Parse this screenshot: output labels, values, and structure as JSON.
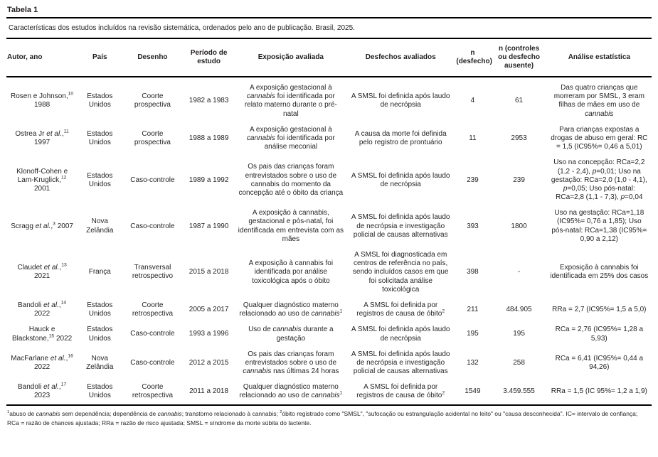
{
  "page": {
    "table_label": "Tabela 1",
    "caption": "Características dos estudos incluídos na revisão sistemática, ordenados pelo ano de publicação. Brasil, 2025."
  },
  "table": {
    "columns": [
      {
        "key": "autor",
        "label": "Autor, ano"
      },
      {
        "key": "pais",
        "label": "País"
      },
      {
        "key": "desenho",
        "label": "Desenho"
      },
      {
        "key": "periodo",
        "label": "Período de estudo"
      },
      {
        "key": "exposicao",
        "label": "Exposição avaliada"
      },
      {
        "key": "desfechos",
        "label": "Desfechos avaliados"
      },
      {
        "key": "n_desfecho",
        "label": "n (desfecho)"
      },
      {
        "key": "n_controles",
        "label": "n (controles ou desfecho ausente)"
      },
      {
        "key": "analise",
        "label": "Análise estatística"
      }
    ],
    "rows": [
      {
        "autor": "Rosen e Johnson,^10^ 1988",
        "pais": "Estados Unidos",
        "desenho": "Coorte prospectiva",
        "periodo": "1982 a 1983",
        "exposicao": "A exposição gestacional à *cannabis* foi identificada por relato materno durante o pré-natal",
        "desfechos": "A SMSL foi definida após laudo de necrópsia",
        "n_desfecho": "4",
        "n_controles": "61",
        "analise": "Das quatro crianças que morreram por SMSL, 3 eram filhas de mães em uso de *cannabis*"
      },
      {
        "autor": "Ostrea Jr *et al.*,^11^ 1997",
        "pais": "Estados Unidos",
        "desenho": "Coorte prospectiva",
        "periodo": "1988 a 1989",
        "exposicao": "A exposição gestacional à *cannabis* foi identificada por análise meconial",
        "desfechos": "A causa da morte foi definida pelo registro de prontuário",
        "n_desfecho": "11",
        "n_controles": "2953",
        "analise": "Para crianças expostas a drogas de abuso em geral: RC = 1,5 (IC95%= 0,46 a 5,01)"
      },
      {
        "autor": "Klonoff-Cohen e Lam-Kruglick,^12^ 2001",
        "pais": "Estados Unidos",
        "desenho": "Caso-controle",
        "periodo": "1989 a 1992",
        "exposicao": "Os pais das crianças foram entrevistados sobre o uso de cannabis do momento da concepção até o óbito da criança",
        "desfechos": "A SMSL foi definida após laudo de necrópsia",
        "n_desfecho": "239",
        "n_controles": "239",
        "analise": "Uso na concepção: RCa=2,2 (1,2 - 2,4), *p*=0,01; Uso na gestação: RCa=2,0 (1,0 - 4,1), *p*=0,05; Uso pós-natal: RCa=2,8 (1,1 - 7,3), *p*=0,04"
      },
      {
        "autor": "Scragg *et al.*,^3^ 2007",
        "pais": "Nova Zelândia",
        "desenho": "Caso-controle",
        "periodo": "1987 a 1990",
        "exposicao": "A exposição à cannabis, gestacional e pós-natal, foi identificada em entrevista com as mães",
        "desfechos": "A SMSL foi definida após laudo de necrópsia e investigação policial de causas alternativas",
        "n_desfecho": "393",
        "n_controles": "1800",
        "analise": "Uso na gestação: RCa=1,18 (IC95%= 0,76 a 1,85); Uso pós-natal: RCa=1,38 (IC95%= 0,90 a 2,12)"
      },
      {
        "autor": "Claudet *et al.*,^13^ 2021",
        "pais": "França",
        "desenho": "Transversal retrospectivo",
        "periodo": "2015 a 2018",
        "exposicao": "A exposição à cannabis foi identificada por análise toxicológica após o óbito",
        "desfechos": "A SMSL foi diagnosticada em centros de referência no país, sendo incluídos casos em que foi solicitada análise toxicológica",
        "n_desfecho": "398",
        "n_controles": "-",
        "analise": "Exposição à cannabis foi identificada em 25% dos casos"
      },
      {
        "autor": "Bandoli *et al.*,^14^ 2022",
        "pais": "Estados Unidos",
        "desenho": "Coorte retrospectiva",
        "periodo": "2005 a 2017",
        "exposicao": "Qualquer diagnóstico materno relacionado ao uso de *cannabis*^1^",
        "desfechos": "A SMSL foi definida por registros de causa de óbito^2^",
        "n_desfecho": "211",
        "n_controles": "484.905",
        "analise": "RRa = 2,7 (IC95%= 1,5 a 5,0)"
      },
      {
        "autor": "Hauck e Blackstone,^15^ 2022",
        "pais": "Estados Unidos",
        "desenho": "Caso-controle",
        "periodo": "1993 a 1996",
        "exposicao": "Uso de *cannabis* durante a gestação",
        "desfechos": "A SMSL foi definida após laudo de necrópsia",
        "n_desfecho": "195",
        "n_controles": "195",
        "analise": "RCa = 2,76 (IC95%= 1,28 a 5,93)"
      },
      {
        "autor": "MacFarlane *et al.*,^16^ 2022",
        "pais": "Nova Zelândia",
        "desenho": "Caso-controle",
        "periodo": "2012 a 2015",
        "exposicao": "Os pais das crianças foram entrevistados sobre o uso de *cannabis* nas últimas 24 horas",
        "desfechos": "A SMSL foi definida após laudo de necrópsia e investigação policial de causas alternativas",
        "n_desfecho": "132",
        "n_controles": "258",
        "analise": "RCa = 6,41 (IC95%= 0,44 a 94,26)"
      },
      {
        "autor": "Bandoli *et al.*,^17^ 2023",
        "pais": "Estados Unidos",
        "desenho": "Coorte retrospectiva",
        "periodo": "2011 a 2018",
        "exposicao": "Qualquer diagnóstico materno relacionado ao uso de *cannabis*^1^",
        "desfechos": "A SMSL foi definida por registros de causa de óbito^2^",
        "n_desfecho": "1549",
        "n_controles": "3.459.555",
        "analise": "RRa = 1,5 (IC 95%= 1,2 a 1,9)"
      }
    ]
  },
  "footnote": "^1^abuso de *cannabis* sem dependência; dependência de *cannabis*; transtorno relacionado à cannabis; ^2^óbito registrado como \"SMSL\", \"sufocação ou estrangulação acidental no leito\" ou \"causa desconhecida\". IC= intervalo de confiança; RCa = razão de chances ajustada; RRa = razão de risco ajustada; SMSL = síndrome da morte súbita do lactente."
}
